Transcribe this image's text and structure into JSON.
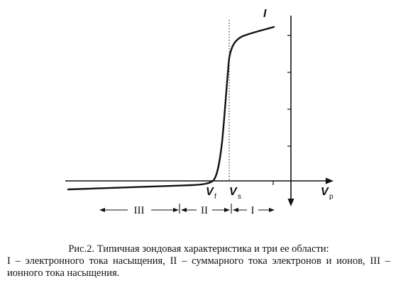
{
  "chart_data": {
    "type": "line",
    "x_label": "V",
    "x_label_sub": "p",
    "y_label": "I",
    "markers": [
      {
        "label": "V",
        "sub": "f"
      },
      {
        "label": "V",
        "sub": "s"
      }
    ],
    "regions": [
      "III",
      "II",
      "I"
    ],
    "curve_shape": "probe I-V characteristic: slow ion-current rise, steep transition, electron saturation",
    "grid": false,
    "legend": "none"
  },
  "caption": {
    "title": "Рис.2. Типичная зондовая характеристика и три ее области:",
    "body": "I – электронного тока насыщения, II – суммарного тока электронов и ионов, III – ионного тока насыщения."
  }
}
